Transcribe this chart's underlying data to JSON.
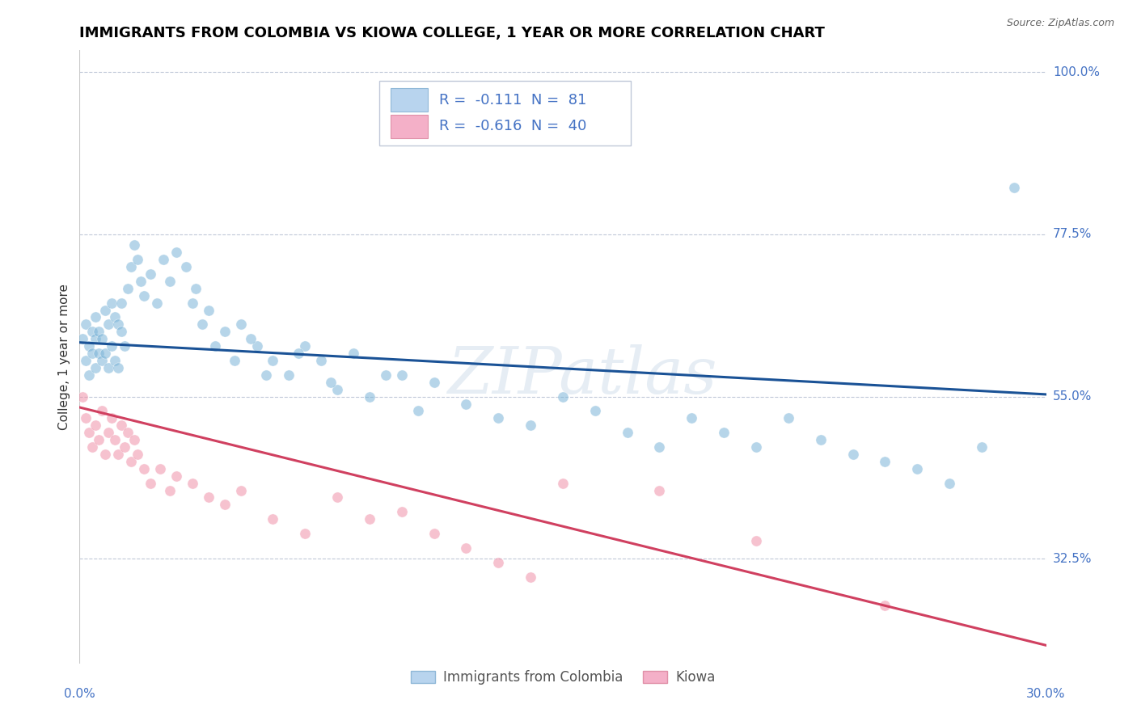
{
  "title": "IMMIGRANTS FROM COLOMBIA VS KIOWA COLLEGE, 1 YEAR OR MORE CORRELATION CHART",
  "source_text": "Source: ZipAtlas.com",
  "ylabel": "College, 1 year or more",
  "xlim": [
    0.0,
    0.3
  ],
  "ylim": [
    0.18,
    1.03
  ],
  "ytick_labels": [
    "100.0%",
    "77.5%",
    "55.0%",
    "32.5%"
  ],
  "ytick_positions": [
    1.0,
    0.775,
    0.55,
    0.325
  ],
  "watermark": "ZIPatlas",
  "legend_entries": [
    {
      "label": "Immigrants from Colombia",
      "R": "-0.111",
      "N": "81",
      "color": "#a8c8e8"
    },
    {
      "label": "Kiowa",
      "R": "-0.616",
      "N": "40",
      "color": "#f4a8b8"
    }
  ],
  "blue_scatter_x": [
    0.001,
    0.002,
    0.002,
    0.003,
    0.003,
    0.004,
    0.004,
    0.005,
    0.005,
    0.005,
    0.006,
    0.006,
    0.007,
    0.007,
    0.008,
    0.008,
    0.009,
    0.009,
    0.01,
    0.01,
    0.011,
    0.011,
    0.012,
    0.012,
    0.013,
    0.013,
    0.014,
    0.015,
    0.016,
    0.017,
    0.018,
    0.019,
    0.02,
    0.022,
    0.024,
    0.026,
    0.028,
    0.03,
    0.033,
    0.036,
    0.04,
    0.045,
    0.05,
    0.055,
    0.06,
    0.065,
    0.07,
    0.075,
    0.08,
    0.09,
    0.1,
    0.11,
    0.12,
    0.13,
    0.14,
    0.15,
    0.16,
    0.17,
    0.18,
    0.19,
    0.2,
    0.21,
    0.22,
    0.23,
    0.24,
    0.25,
    0.26,
    0.27,
    0.28,
    0.29,
    0.035,
    0.038,
    0.042,
    0.048,
    0.053,
    0.058,
    0.068,
    0.078,
    0.085,
    0.095,
    0.105
  ],
  "blue_scatter_y": [
    0.63,
    0.6,
    0.65,
    0.58,
    0.62,
    0.61,
    0.64,
    0.59,
    0.63,
    0.66,
    0.61,
    0.64,
    0.6,
    0.63,
    0.67,
    0.61,
    0.65,
    0.59,
    0.68,
    0.62,
    0.66,
    0.6,
    0.65,
    0.59,
    0.64,
    0.68,
    0.62,
    0.7,
    0.73,
    0.76,
    0.74,
    0.71,
    0.69,
    0.72,
    0.68,
    0.74,
    0.71,
    0.75,
    0.73,
    0.7,
    0.67,
    0.64,
    0.65,
    0.62,
    0.6,
    0.58,
    0.62,
    0.6,
    0.56,
    0.55,
    0.58,
    0.57,
    0.54,
    0.52,
    0.51,
    0.55,
    0.53,
    0.5,
    0.48,
    0.52,
    0.5,
    0.48,
    0.52,
    0.49,
    0.47,
    0.46,
    0.45,
    0.43,
    0.48,
    0.84,
    0.68,
    0.65,
    0.62,
    0.6,
    0.63,
    0.58,
    0.61,
    0.57,
    0.61,
    0.58,
    0.53
  ],
  "pink_scatter_x": [
    0.001,
    0.002,
    0.003,
    0.004,
    0.005,
    0.006,
    0.007,
    0.008,
    0.009,
    0.01,
    0.011,
    0.012,
    0.013,
    0.014,
    0.015,
    0.016,
    0.017,
    0.018,
    0.02,
    0.022,
    0.025,
    0.028,
    0.03,
    0.035,
    0.04,
    0.045,
    0.05,
    0.06,
    0.07,
    0.08,
    0.09,
    0.1,
    0.11,
    0.12,
    0.13,
    0.14,
    0.15,
    0.18,
    0.21,
    0.25
  ],
  "pink_scatter_y": [
    0.55,
    0.52,
    0.5,
    0.48,
    0.51,
    0.49,
    0.53,
    0.47,
    0.5,
    0.52,
    0.49,
    0.47,
    0.51,
    0.48,
    0.5,
    0.46,
    0.49,
    0.47,
    0.45,
    0.43,
    0.45,
    0.42,
    0.44,
    0.43,
    0.41,
    0.4,
    0.42,
    0.38,
    0.36,
    0.41,
    0.38,
    0.39,
    0.36,
    0.34,
    0.32,
    0.3,
    0.43,
    0.42,
    0.35,
    0.26
  ],
  "blue_line_x": [
    0.0,
    0.3
  ],
  "blue_line_y": [
    0.625,
    0.553
  ],
  "pink_line_x": [
    0.0,
    0.3
  ],
  "pink_line_y": [
    0.535,
    0.205
  ],
  "scatter_size": 90,
  "scatter_alpha": 0.55,
  "blue_color": "#7ab4d8",
  "pink_color": "#f090a8",
  "blue_line_color": "#1a5296",
  "pink_line_color": "#d04060",
  "background_color": "#ffffff",
  "title_fontsize": 13,
  "axis_label_fontsize": 11,
  "tick_fontsize": 11,
  "legend_fontsize": 13
}
